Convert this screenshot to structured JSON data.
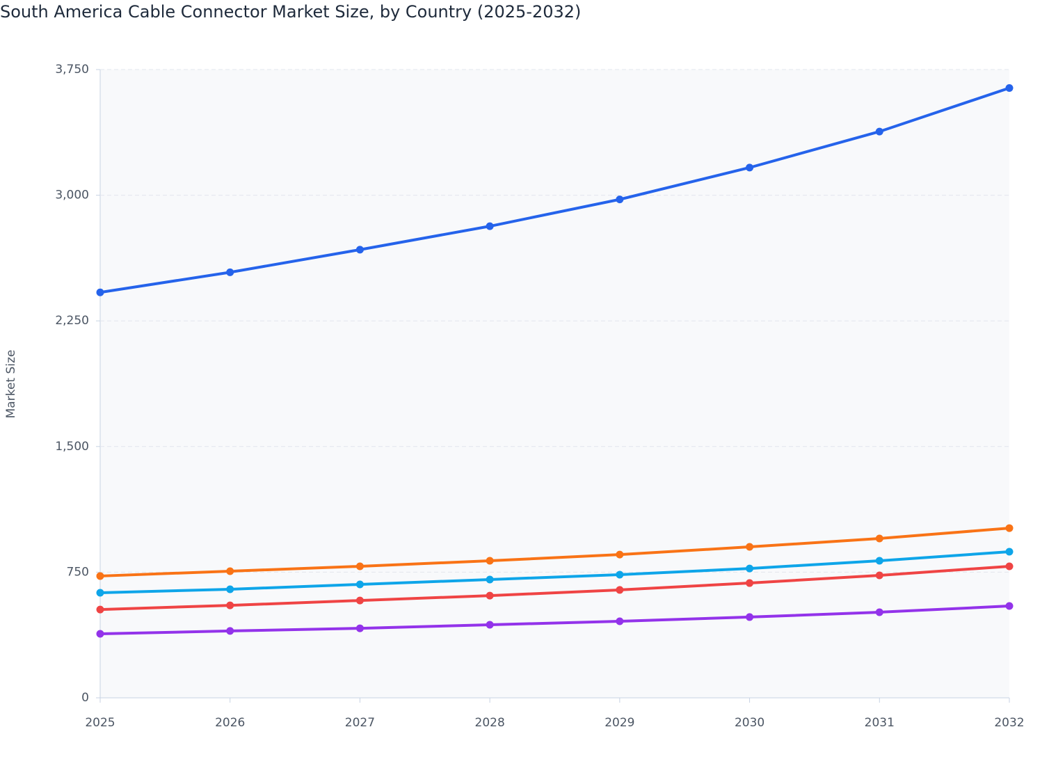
{
  "chart_data": {
    "type": "line",
    "title": "South America Cable Connector Market Size, by Country (2025-2032)",
    "y_label": "Market Size",
    "categories": [
      "2025",
      "2026",
      "2027",
      "2028",
      "2029",
      "2030",
      "2031",
      "2032"
    ],
    "series": [
      {
        "color": "#2563eb",
        "values": [
          2420,
          2540,
          2675,
          2815,
          2975,
          3165,
          3380,
          3640
        ]
      },
      {
        "color": "#f97316",
        "values": [
          727,
          756,
          785,
          818,
          855,
          901,
          951,
          1013
        ]
      },
      {
        "color": "#0ea5e9",
        "values": [
          627,
          648,
          677,
          706,
          735,
          772,
          818,
          872
        ]
      },
      {
        "color": "#ef4444",
        "values": [
          527,
          552,
          581,
          610,
          644,
          685,
          731,
          785
        ]
      },
      {
        "color": "#9333ea",
        "values": [
          382,
          399,
          415,
          436,
          457,
          482,
          511,
          548
        ]
      }
    ],
    "ylim": [
      0,
      3750
    ],
    "yticks": [
      0,
      {
        "value": 750,
        "label": "750"
      },
      {
        "value": 1500,
        "label": "1,500"
      },
      {
        "value": 2250,
        "label": "2,250"
      },
      {
        "value": 3000,
        "label": "3,000"
      },
      {
        "value": 3750,
        "label": "3,750"
      }
    ],
    "grid": true
  }
}
